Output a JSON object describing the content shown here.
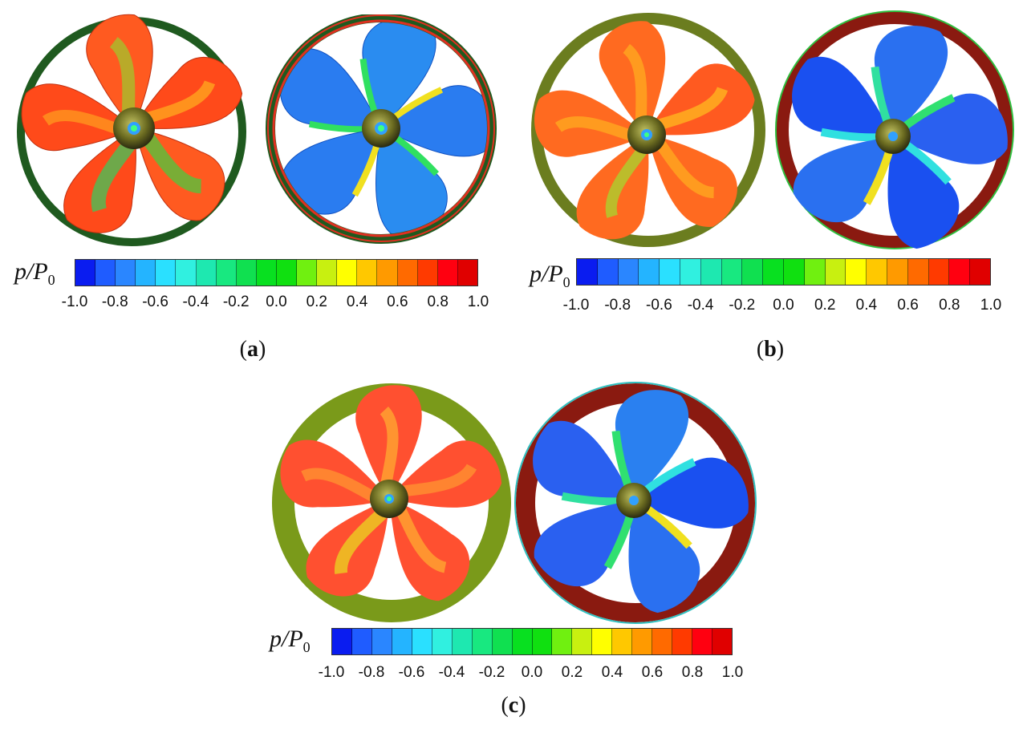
{
  "panels": [
    {
      "caption_open": "(",
      "caption_letter": "a",
      "caption_close": ")"
    },
    {
      "caption_open": "(",
      "caption_letter": "b",
      "caption_close": ")"
    },
    {
      "caption_open": "(",
      "caption_letter": "c",
      "caption_close": ")"
    }
  ],
  "colorbar": {
    "var_base": "p/P",
    "var_sub": "0",
    "ticks": [
      "-1.0",
      "-0.8",
      "-0.6",
      "-0.4",
      "-0.2",
      "0.0",
      "0.2",
      "0.4",
      "0.6",
      "0.8",
      "1.0"
    ],
    "levels": [
      "#0a1cf0",
      "#1f5cff",
      "#2a86ff",
      "#24b4ff",
      "#2ae0ff",
      "#30f0e0",
      "#1ee8b0",
      "#18e880",
      "#10e050",
      "#08e020",
      "#10e010",
      "#70f010",
      "#c8f010",
      "#ffff00",
      "#ffc800",
      "#ff9a00",
      "#ff6a00",
      "#ff3a00",
      "#ff0010",
      "#e00000"
    ]
  },
  "colors": {
    "duct_dark": "#1f5a1f",
    "duct_olive": "#6b7d1f",
    "duct_red": "#8a1a10",
    "hub": "#6a6a20"
  }
}
